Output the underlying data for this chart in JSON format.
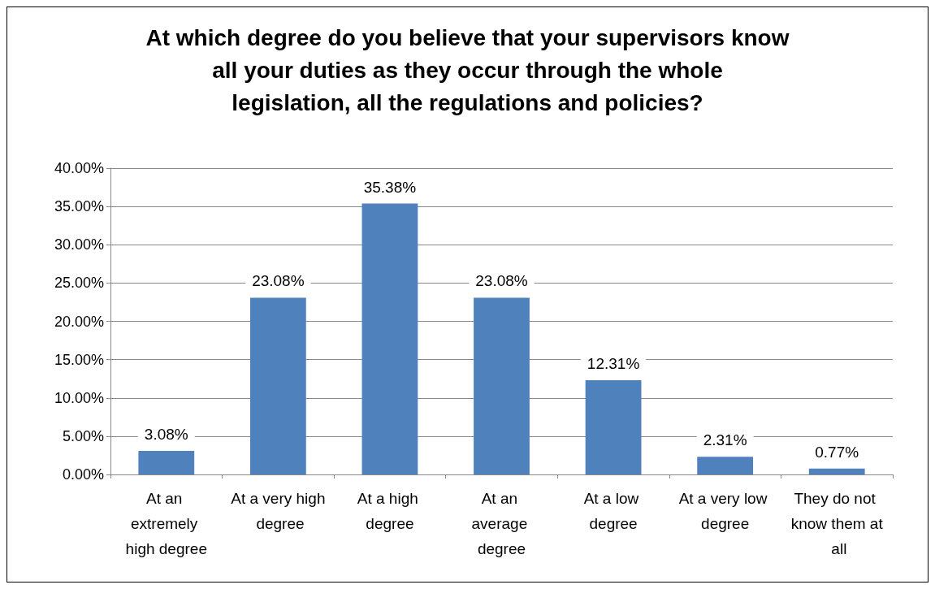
{
  "chart_data": {
    "type": "bar",
    "title": "At which degree do you believe that your supervisors know all your duties as they occur through the whole legislation, all the regulations and policies?",
    "categories": [
      "At an extremely high degree",
      "At a very high degree",
      "At a high degree",
      "At an average degree",
      "At a low degree",
      "At a very low degree",
      "They do not know them at all"
    ],
    "values": [
      3.08,
      23.08,
      35.38,
      23.08,
      12.31,
      2.31,
      0.77
    ],
    "value_labels": [
      "3.08%",
      "23.08%",
      "35.38%",
      "23.08%",
      "12.31%",
      "2.31%",
      "0.77%"
    ],
    "color": "#4f81bd",
    "ylim": [
      0,
      40
    ],
    "yticks": [
      {
        "value": 0,
        "label": "0.00%"
      },
      {
        "value": 5,
        "label": "5.00%"
      },
      {
        "value": 10,
        "label": "10.00%"
      },
      {
        "value": 15,
        "label": "15.00%"
      },
      {
        "value": 20,
        "label": "20.00%"
      },
      {
        "value": 25,
        "label": "25.00%"
      },
      {
        "value": 30,
        "label": "30.00%"
      },
      {
        "value": 35,
        "label": "35.00%"
      },
      {
        "value": 40,
        "label": "40.00%"
      }
    ],
    "grid": "y"
  }
}
